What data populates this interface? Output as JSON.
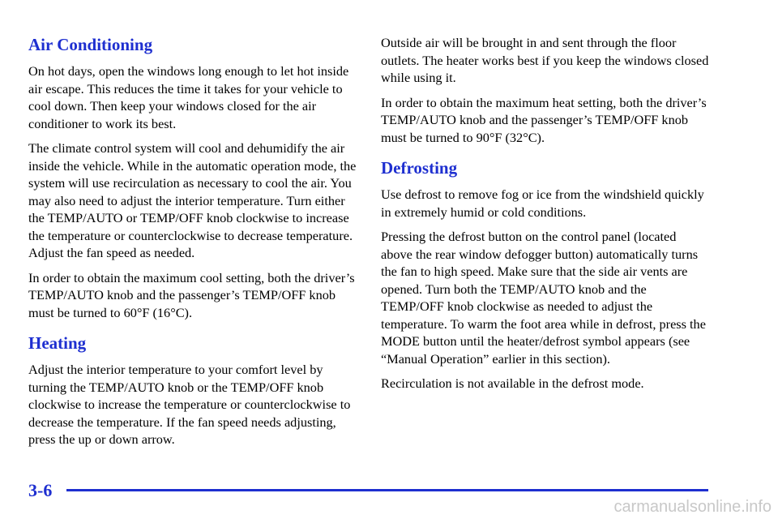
{
  "left_column": {
    "sections": [
      {
        "heading": "Air Conditioning",
        "paragraphs": [
          "On hot days, open the windows long enough to let hot inside air escape. This reduces the time it takes for your vehicle to cool down. Then keep your windows closed for the air conditioner to work its best.",
          "The climate control system will cool and dehumidify the air inside the vehicle. While in the automatic operation mode, the system will use recirculation as necessary to cool the air. You may also need to adjust the interior temperature. Turn either the TEMP/AUTO or TEMP/OFF knob clockwise to increase the temperature or counterclockwise to decrease temperature. Adjust the fan speed as needed.",
          "In order to obtain the maximum cool setting, both the driver’s TEMP/AUTO knob and the passenger’s TEMP/OFF knob must be turned to 60°F (16°C)."
        ]
      },
      {
        "heading": "Heating",
        "paragraphs": [
          "Adjust the interior temperature to your comfort level by turning the TEMP/AUTO knob or the TEMP/OFF knob clockwise to increase the temperature or counterclockwise to decrease the temperature. If the fan speed needs adjusting, press the up or down arrow."
        ]
      }
    ]
  },
  "right_column": {
    "paragraphs": [
      "Outside air will be brought in and sent through the floor outlets. The heater works best if you keep the windows closed while using it.",
      "In order to obtain the maximum heat setting, both the driver’s TEMP/AUTO knob and the passenger’s TEMP/OFF knob must be turned to 90°F (32°C)."
    ],
    "sections": [
      {
        "heading": "Defrosting",
        "paragraphs": [
          "Use defrost to remove fog or ice from the windshield quickly in extremely humid or cold conditions.",
          "Pressing the defrost button on the control panel (located above the rear window defogger button) automatically turns the fan to high speed. Make sure that the side air vents are opened. Turn both the TEMP/AUTO knob and the TEMP/OFF knob clockwise as needed to adjust the temperature. To warm the foot area while in defrost, press the MODE button until the heater/defrost symbol appears (see “Manual Operation” earlier in this section).",
          "Recirculation is not available in the defrost mode."
        ]
      }
    ]
  },
  "footer": {
    "page_number": "3-6",
    "watermark": "carmanualsonline.info"
  }
}
